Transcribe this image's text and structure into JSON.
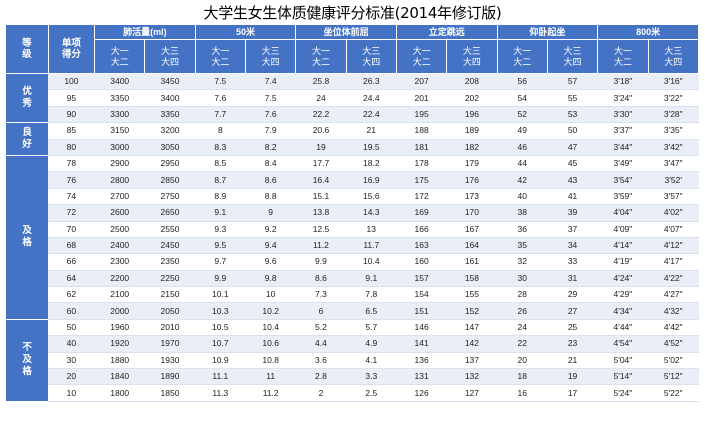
{
  "title": "大学生女生体质健康评分标准(2014年修订版)",
  "header": {
    "grade": "等级",
    "score": "单项得分",
    "groups": [
      "肺活量(ml)",
      "50米",
      "坐位体前屈",
      "立定跳远",
      "仰卧起坐",
      "800米"
    ],
    "subheaders": [
      [
        "大一大二",
        "大三大四"
      ],
      [
        "大一大二",
        "大三大四"
      ],
      [
        "大一大二",
        "大三大四"
      ],
      [
        "大一大二",
        "大三大四"
      ],
      [
        "大一大二",
        "大三大四"
      ],
      [
        "大一大二",
        "大三大四"
      ]
    ]
  },
  "grades": [
    {
      "label": "优秀",
      "rows": [
        [
          "100",
          "3400",
          "3450",
          "7.5",
          "7.4",
          "25.8",
          "26.3",
          "207",
          "208",
          "56",
          "57",
          "3'18\"",
          "3'16\""
        ],
        [
          "95",
          "3350",
          "3400",
          "7.6",
          "7.5",
          "24",
          "24.4",
          "201",
          "202",
          "54",
          "55",
          "3'24\"",
          "3'22\""
        ],
        [
          "90",
          "3300",
          "3350",
          "7.7",
          "7.6",
          "22.2",
          "22.4",
          "195",
          "196",
          "52",
          "53",
          "3'30\"",
          "3'28\""
        ]
      ]
    },
    {
      "label": "良好",
      "rows": [
        [
          "85",
          "3150",
          "3200",
          "8",
          "7.9",
          "20.6",
          "21",
          "188",
          "189",
          "49",
          "50",
          "3'37\"",
          "3'35\""
        ],
        [
          "80",
          "3000",
          "3050",
          "8.3",
          "8.2",
          "19",
          "19.5",
          "181",
          "182",
          "46",
          "47",
          "3'44\"",
          "3'42\""
        ]
      ]
    },
    {
      "label": "及格",
      "rows": [
        [
          "78",
          "2900",
          "2950",
          "8.5",
          "8.4",
          "17.7",
          "18.2",
          "178",
          "179",
          "44",
          "45",
          "3'49\"",
          "3'47\""
        ],
        [
          "76",
          "2800",
          "2850",
          "8.7",
          "8.6",
          "16.4",
          "16.9",
          "175",
          "176",
          "42",
          "43",
          "3'54\"",
          "3'52'"
        ],
        [
          "74",
          "2700",
          "2750",
          "8.9",
          "8.8",
          "15.1",
          "15.6",
          "172",
          "173",
          "40",
          "41",
          "3'59\"",
          "3'57\""
        ],
        [
          "72",
          "2600",
          "2650",
          "9.1",
          "9",
          "13.8",
          "14.3",
          "169",
          "170",
          "38",
          "39",
          "4'04\"",
          "4'02\""
        ],
        [
          "70",
          "2500",
          "2550",
          "9.3",
          "9.2",
          "12.5",
          "13",
          "166",
          "167",
          "36",
          "37",
          "4'09\"",
          "4'07\""
        ],
        [
          "68",
          "2400",
          "2450",
          "9.5",
          "9.4",
          "11.2",
          "11.7",
          "163",
          "164",
          "35",
          "34",
          "4'14\"",
          "4'12\""
        ],
        [
          "66",
          "2300",
          "2350",
          "9.7",
          "9.6",
          "9.9",
          "10.4",
          "160",
          "161",
          "32",
          "33",
          "4'19\"",
          "4'17\""
        ],
        [
          "64",
          "2200",
          "2250",
          "9.9",
          "9.8",
          "8.6",
          "9.1",
          "157",
          "158",
          "30",
          "31",
          "4'24\"",
          "4'22\""
        ],
        [
          "62",
          "2100",
          "2150",
          "10.1",
          "10",
          "7.3",
          "7.8",
          "154",
          "155",
          "28",
          "29",
          "4'29\"",
          "4'27\""
        ],
        [
          "60",
          "2000",
          "2050",
          "10.3",
          "10.2",
          "6",
          "6.5",
          "151",
          "152",
          "26",
          "27",
          "4'34\"",
          "4'32\""
        ]
      ]
    },
    {
      "label": "不及格",
      "rows": [
        [
          "50",
          "1960",
          "2010",
          "10.5",
          "10.4",
          "5.2",
          "5.7",
          "146",
          "147",
          "24",
          "25",
          "4'44\"",
          "4'42\""
        ],
        [
          "40",
          "1920",
          "1970",
          "10.7",
          "10.6",
          "4.4",
          "4.9",
          "141",
          "142",
          "22",
          "23",
          "4'54\"",
          "4'52\""
        ],
        [
          "30",
          "1880",
          "1930",
          "10.9",
          "10.8",
          "3.6",
          "4.1",
          "136",
          "137",
          "20",
          "21",
          "5'04\"",
          "5'02\""
        ],
        [
          "20",
          "1840",
          "1890",
          "11.1",
          "11",
          "2.8",
          "3.3",
          "131",
          "132",
          "18",
          "19",
          "5'14\"",
          "5'12\""
        ],
        [
          "10",
          "1800",
          "1850",
          "11.3",
          "11.2",
          "2",
          "2.5",
          "126",
          "127",
          "16",
          "17",
          "5'24\"",
          "5'22\""
        ]
      ]
    }
  ]
}
